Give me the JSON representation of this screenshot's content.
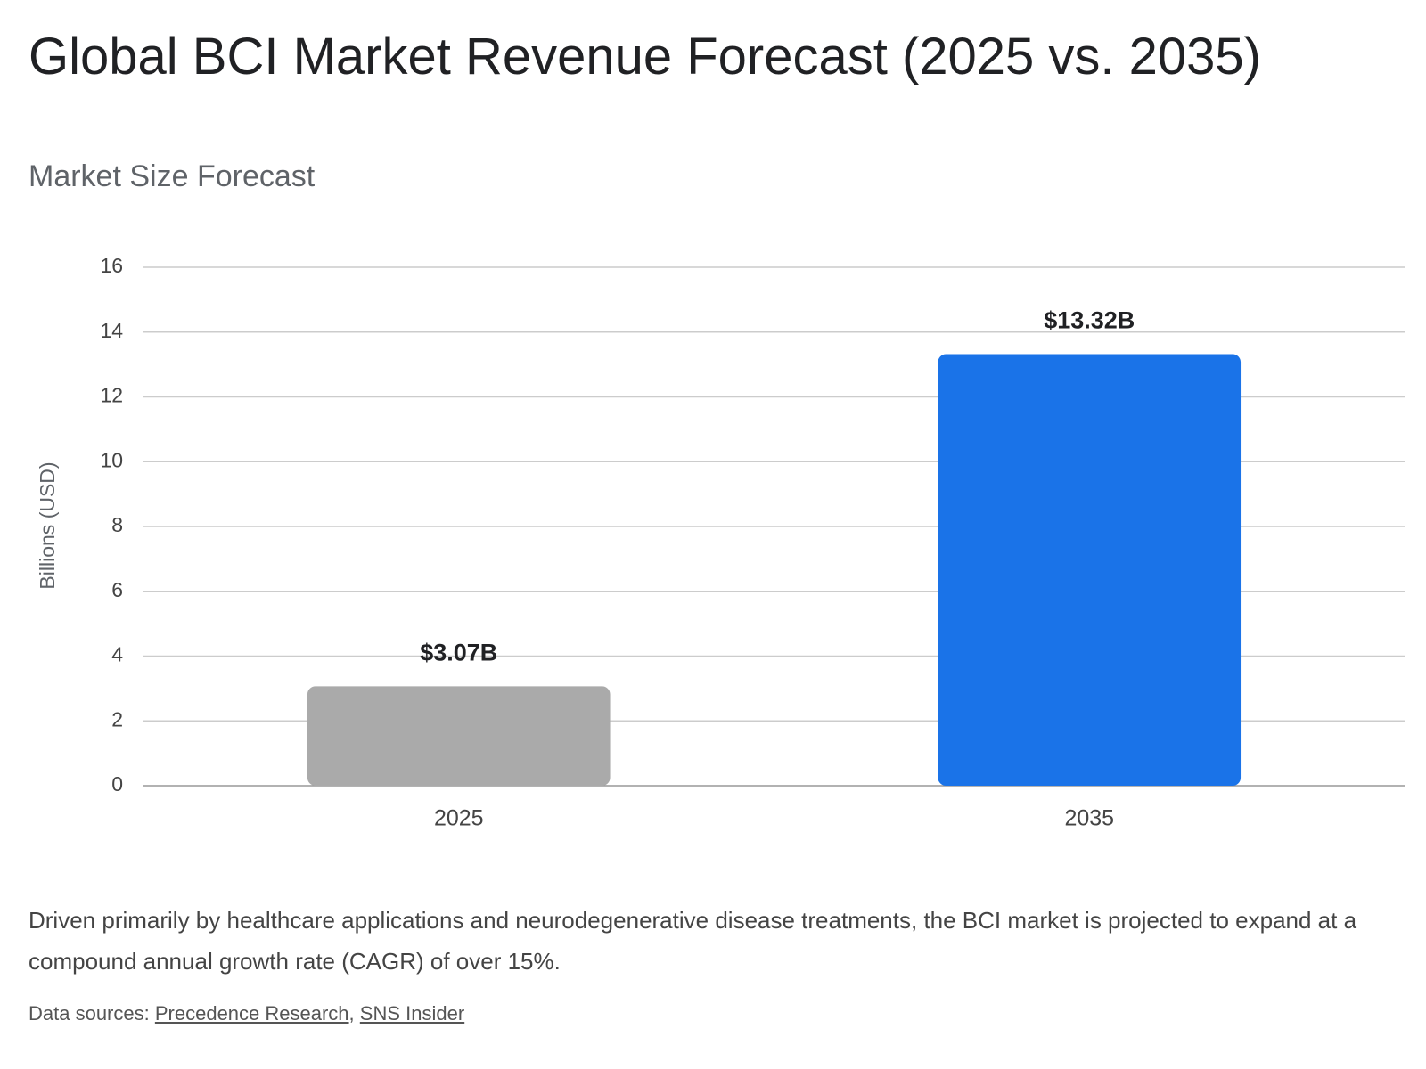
{
  "title": "Global BCI Market Revenue Forecast (2025 vs. 2035)",
  "chart_data": {
    "type": "bar",
    "title": "Market Size Forecast",
    "y_label": "Billions (USD)",
    "categories": [
      "2025",
      "2035"
    ],
    "values": [
      3.07,
      13.32
    ],
    "value_labels": [
      "$3.07B",
      "$13.32B"
    ],
    "colors": [
      "#aaaaaa",
      "#1a73e8"
    ],
    "ylim": [
      0,
      16
    ],
    "yticks": [
      0,
      2,
      4,
      6,
      8,
      10,
      12,
      14,
      16
    ],
    "grid": true
  },
  "description": "Driven primarily by healthcare applications and neurodegenerative disease treatments, the BCI market is projected to expand at a compound annual growth rate (CAGR) of over 15%.",
  "sources": {
    "label": "Data sources:",
    "links": [
      "Precedence Research",
      "SNS Insider"
    ],
    "separator": ","
  }
}
